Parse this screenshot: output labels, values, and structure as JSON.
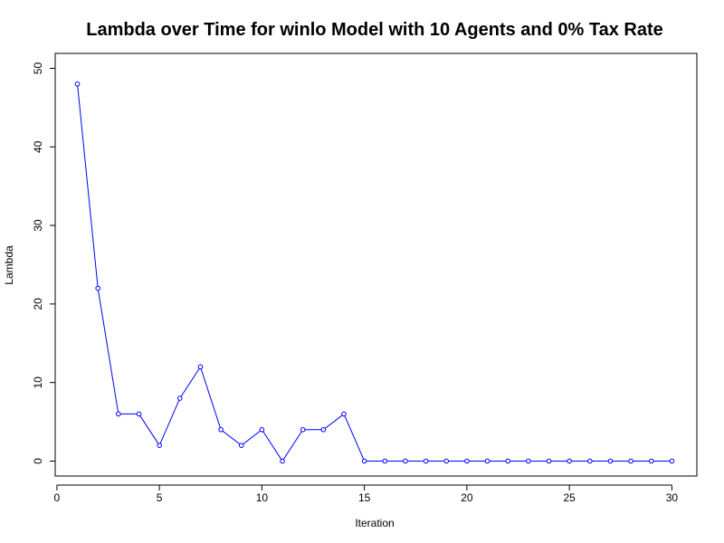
{
  "chart_data": {
    "type": "line",
    "title": "Lambda over Time for winlo Model with 10 Agents and 0% Tax Rate",
    "xlabel": "Iteration",
    "ylabel": "Lambda",
    "xlim": [
      0,
      30
    ],
    "ylim": [
      0,
      50
    ],
    "x_ticks": [
      0,
      5,
      10,
      15,
      20,
      25,
      30
    ],
    "y_ticks": [
      0,
      10,
      20,
      30,
      40,
      50
    ],
    "x_tick_labels": [
      "0",
      "5",
      "10",
      "15",
      "20",
      "25",
      "30"
    ],
    "y_tick_labels": [
      "0",
      "10",
      "20",
      "30",
      "40",
      "50"
    ],
    "grid": false,
    "legend": "none",
    "series_color": "#0000ff",
    "x": [
      1,
      2,
      3,
      4,
      5,
      6,
      7,
      8,
      9,
      10,
      11,
      12,
      13,
      14,
      15,
      16,
      17,
      18,
      19,
      20,
      21,
      22,
      23,
      24,
      25,
      26,
      27,
      28,
      29,
      30
    ],
    "series": [
      {
        "values": [
          48,
          22,
          6,
          6,
          2,
          8,
          12,
          4,
          2,
          4,
          0,
          4,
          4,
          6,
          0,
          0,
          0,
          0,
          0,
          0,
          0,
          0,
          0,
          0,
          0,
          0,
          0,
          0,
          0,
          0
        ]
      }
    ]
  }
}
